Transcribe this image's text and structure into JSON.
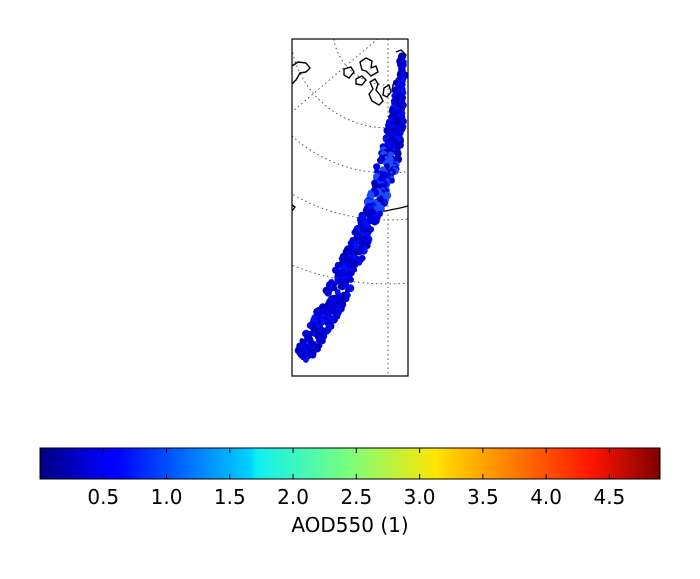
{
  "map": {
    "projection": "polar-stereographic",
    "swath_band": "satellite AOD550 retrieval track",
    "colors": {
      "frame": "#000000",
      "coast": "#000000",
      "graticule": "#555555"
    }
  },
  "colorbar": {
    "label": "AOD550 (1)",
    "vmin": 0.0,
    "vmax": 4.9,
    "colormap": "jet",
    "ticks": [
      {
        "value": 0.5,
        "label": "0.5"
      },
      {
        "value": 1.0,
        "label": "1.0"
      },
      {
        "value": 1.5,
        "label": "1.5"
      },
      {
        "value": 2.0,
        "label": "2.0"
      },
      {
        "value": 2.5,
        "label": "2.5"
      },
      {
        "value": 3.0,
        "label": "3.0"
      },
      {
        "value": 3.5,
        "label": "3.5"
      },
      {
        "value": 4.0,
        "label": "4.0"
      },
      {
        "value": 4.5,
        "label": "4.5"
      }
    ]
  }
}
